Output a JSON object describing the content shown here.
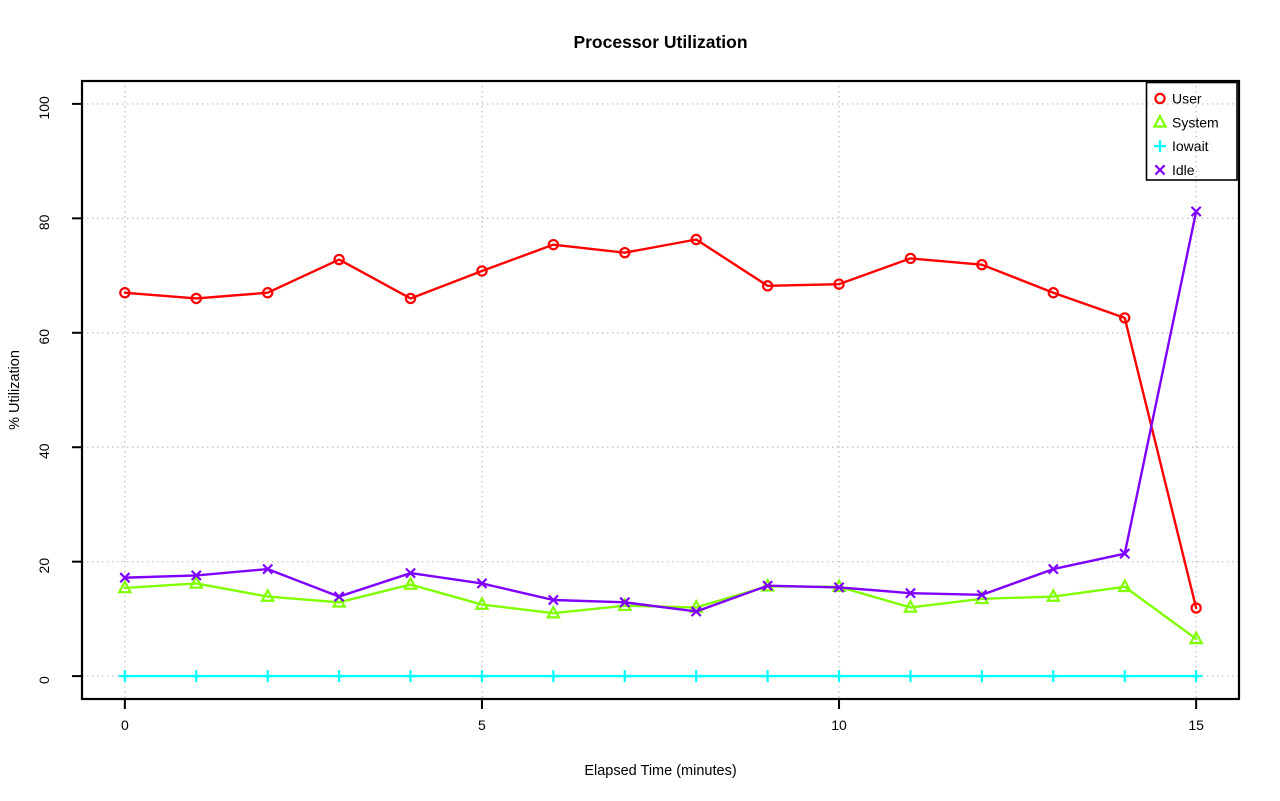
{
  "chart_data": {
    "type": "line",
    "title": "Processor Utilization",
    "xlabel": "Elapsed Time (minutes)",
    "ylabel": "% Utilization",
    "x": [
      0,
      1,
      2,
      3,
      4,
      5,
      6,
      7,
      8,
      9,
      10,
      11,
      12,
      13,
      14,
      15
    ],
    "xlim": [
      0,
      15
    ],
    "ylim": [
      0,
      100
    ],
    "xticks": [
      0,
      5,
      10,
      15
    ],
    "yticks": [
      0,
      20,
      40,
      60,
      80,
      100
    ],
    "grid": true,
    "grid_style": "dotted",
    "legend_position": "top-right",
    "series": [
      {
        "name": "User",
        "color": "#FF0000",
        "marker": "circle",
        "values": [
          67.0,
          66.0,
          67.0,
          72.8,
          66.0,
          70.8,
          75.4,
          74.0,
          76.3,
          68.2,
          68.5,
          73.0,
          71.9,
          67.0,
          62.6,
          11.9
        ]
      },
      {
        "name": "System",
        "color": "#80FF00",
        "marker": "triangle",
        "values": [
          15.4,
          16.2,
          13.9,
          12.9,
          16.0,
          12.5,
          11.0,
          12.3,
          12.0,
          15.7,
          15.6,
          12.0,
          13.5,
          13.9,
          15.6,
          6.5
        ]
      },
      {
        "name": "Iowait",
        "color": "#00FFFF",
        "marker": "plus",
        "values": [
          0,
          0,
          0,
          0,
          0,
          0,
          0,
          0,
          0,
          0,
          0,
          0,
          0,
          0,
          0,
          0
        ]
      },
      {
        "name": "Idle",
        "color": "#8000FF",
        "marker": "x",
        "values": [
          17.2,
          17.6,
          18.7,
          13.9,
          18.0,
          16.2,
          13.3,
          12.9,
          11.3,
          15.8,
          15.5,
          14.5,
          14.2,
          18.7,
          21.4,
          81.2
        ]
      }
    ],
    "colors": {
      "grid": "#c3c3c3",
      "axis": "#000000",
      "background": "#ffffff"
    }
  }
}
